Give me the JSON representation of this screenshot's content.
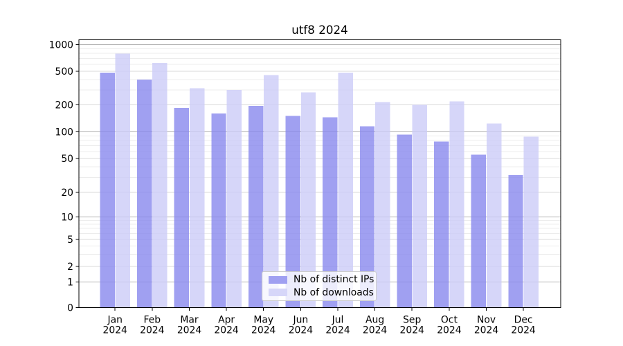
{
  "figure": {
    "title": "utf8 2024"
  },
  "legend": {
    "items": [
      {
        "id": "ips",
        "label": "Nb of distinct IPs",
        "color": "#8888ee"
      },
      {
        "id": "downloads",
        "label": "Nb of downloads",
        "color": "#ccccf8"
      }
    ]
  },
  "axes": {
    "y_tick_labels": [
      "0",
      "1",
      "2",
      "5",
      "10",
      "20",
      "50",
      "100",
      "200",
      "500",
      "1000"
    ],
    "x_tick_labels_line1": [
      "Jan",
      "Feb",
      "Mar",
      "Apr",
      "May",
      "Jun",
      "Jul",
      "Aug",
      "Sep",
      "Oct",
      "Nov",
      "Dec"
    ],
    "x_tick_labels_line2": "2024"
  },
  "colors": {
    "ips_bar": "#8888ee",
    "downloads_bar": "#ccccf8",
    "major_grid": "#b0b0b0",
    "sub_grid": "#d9d9d9",
    "minor_grid": "#ececec",
    "axis": "#000000",
    "bar_opacity": 0.8
  },
  "chart_data": {
    "type": "bar",
    "title": "utf8 2024",
    "categories": [
      "Jan 2024",
      "Feb 2024",
      "Mar 2024",
      "Apr 2024",
      "May 2024",
      "Jun 2024",
      "Jul 2024",
      "Aug 2024",
      "Sep 2024",
      "Oct 2024",
      "Nov 2024",
      "Dec 2024"
    ],
    "series": [
      {
        "name": "Nb of distinct IPs",
        "color": "#8888ee",
        "values": [
          480,
          400,
          185,
          160,
          195,
          150,
          145,
          115,
          93,
          78,
          55,
          32
        ]
      },
      {
        "name": "Nb of downloads",
        "color": "#ccccf8",
        "values": [
          790,
          620,
          315,
          300,
          450,
          280,
          480,
          215,
          200,
          220,
          124,
          88
        ]
      }
    ],
    "xlabel": "",
    "ylabel": "",
    "yscale": "symlog",
    "yticks": [
      0,
      1,
      2,
      5,
      10,
      20,
      50,
      100,
      200,
      500,
      1000
    ],
    "ylim": [
      0,
      1000
    ],
    "grid": true,
    "grid_minor": true,
    "legend_position": "lower center"
  }
}
